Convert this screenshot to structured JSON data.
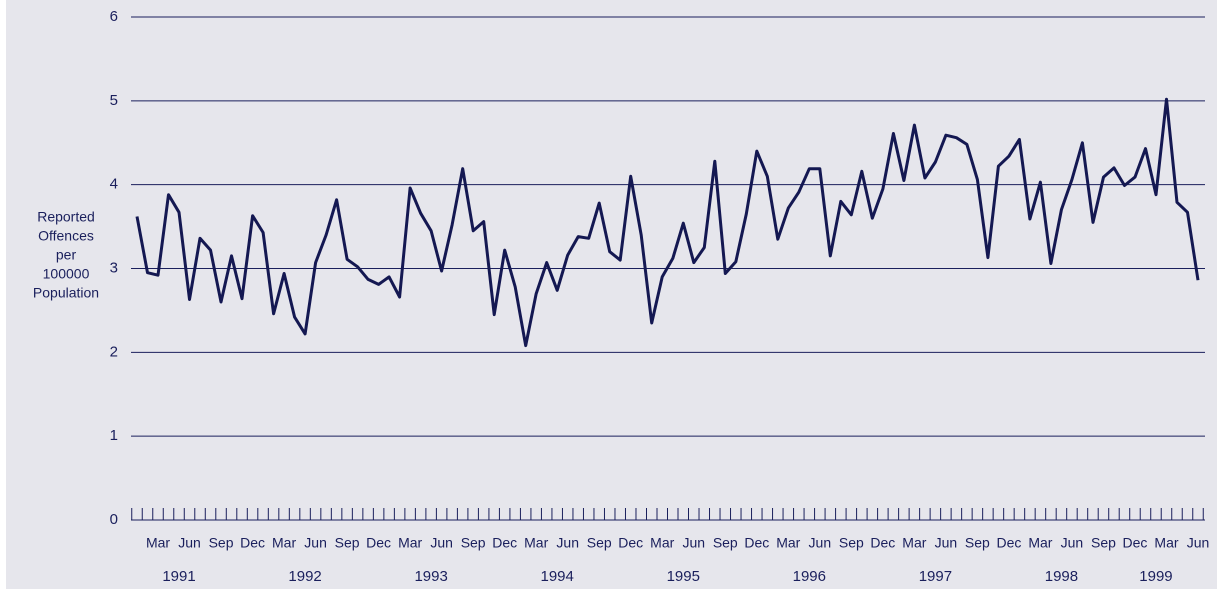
{
  "chart_data": {
    "type": "line",
    "y_label_lines": [
      "Reported",
      "Offences",
      "per",
      "100000",
      "Population"
    ],
    "categories": [
      null,
      null,
      "Mar",
      null,
      null,
      "Jun",
      null,
      null,
      "Sep",
      null,
      null,
      "Dec",
      null,
      null,
      "Mar",
      null,
      null,
      "Jun",
      null,
      null,
      "Sep",
      null,
      null,
      "Dec",
      null,
      null,
      "Mar",
      null,
      null,
      "Jun",
      null,
      null,
      "Sep",
      null,
      null,
      "Dec",
      null,
      null,
      "Mar",
      null,
      null,
      "Jun",
      null,
      null,
      "Sep",
      null,
      null,
      "Dec",
      null,
      null,
      "Mar",
      null,
      null,
      "Jun",
      null,
      null,
      "Sep",
      null,
      null,
      "Dec",
      null,
      null,
      "Mar",
      null,
      null,
      "Jun",
      null,
      null,
      "Sep",
      null,
      null,
      "Dec",
      null,
      null,
      "Mar",
      null,
      null,
      "Jun",
      null,
      null,
      "Sep",
      null,
      null,
      "Dec",
      null,
      null,
      "Mar",
      null,
      null,
      "Jun",
      null,
      null,
      "Sep",
      null,
      null,
      "Dec",
      null,
      null,
      "Mar",
      null,
      null,
      "Jun"
    ],
    "years": [
      "1991",
      "1992",
      "1993",
      "1994",
      "1995",
      "1996",
      "1997",
      "1998",
      "1999"
    ],
    "series": [
      {
        "color": "#141852",
        "values": [
          3.62,
          2.95,
          2.92,
          3.88,
          3.67,
          2.63,
          3.36,
          3.22,
          2.6,
          3.15,
          2.64,
          3.63,
          3.43,
          2.46,
          2.94,
          2.42,
          2.22,
          3.07,
          3.4,
          3.82,
          3.11,
          3.02,
          2.87,
          2.81,
          2.9,
          2.66,
          3.96,
          3.66,
          3.45,
          2.97,
          3.52,
          4.19,
          3.45,
          3.56,
          2.45,
          3.22,
          2.78,
          2.08,
          2.7,
          3.07,
          2.74,
          3.16,
          3.38,
          3.36,
          3.78,
          3.2,
          3.1,
          4.1,
          3.4,
          2.35,
          2.9,
          3.12,
          3.54,
          3.07,
          3.25,
          4.28,
          2.94,
          3.08,
          3.65,
          4.4,
          4.1,
          3.35,
          3.72,
          3.91,
          4.19,
          4.19,
          3.15,
          3.8,
          3.64,
          4.16,
          3.6,
          3.95,
          4.61,
          4.05,
          4.71,
          4.08,
          4.27,
          4.59,
          4.56,
          4.48,
          4.06,
          3.13,
          4.22,
          4.34,
          4.54,
          3.59,
          4.03,
          3.06,
          3.7,
          4.06,
          4.5,
          3.55,
          4.09,
          4.2,
          3.99,
          4.09,
          4.43,
          3.88,
          5.02,
          3.79,
          3.67,
          2.86
        ]
      }
    ],
    "ylim": [
      0,
      6
    ],
    "yticks": [
      0,
      1,
      2,
      3,
      4,
      5,
      6
    ],
    "grid": true,
    "grid_color": "#1a1f5c",
    "background": "#e6e6ec"
  }
}
